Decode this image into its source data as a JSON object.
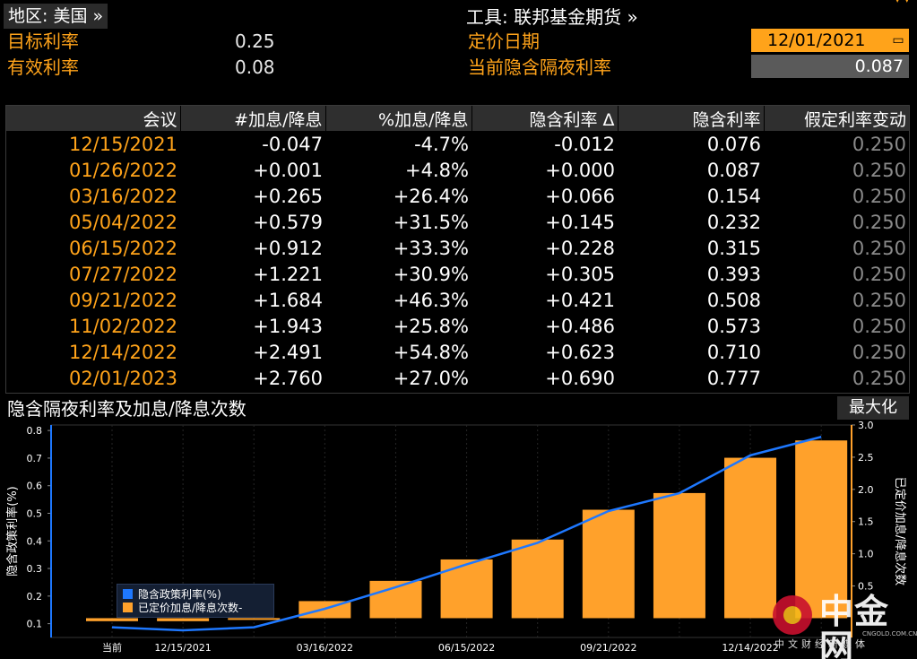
{
  "header": {
    "region_label": "地区: 美国 »",
    "instrument_label": "工具: 联邦基金期货 »",
    "target_rate_label": "目标利率",
    "target_rate_value": "0.25",
    "effective_rate_label": "有效利率",
    "effective_rate_value": "0.08",
    "pricing_date_label": "定价日期",
    "pricing_date_value": "12/01/2021",
    "implied_overnight_label": "当前隐含隔夜利率",
    "implied_overnight_value": "0.087"
  },
  "table": {
    "columns": [
      "会议",
      "#加息/降息",
      "%加息/降息",
      "隐含利率 Δ",
      "隐含利率",
      "假定利率变动"
    ],
    "rows": [
      [
        "12/15/2021",
        "-0.047",
        "-4.7%",
        "-0.012",
        "0.076",
        "0.250"
      ],
      [
        "01/26/2022",
        "+0.001",
        "+4.8%",
        "+0.000",
        "0.087",
        "0.250"
      ],
      [
        "03/16/2022",
        "+0.265",
        "+26.4%",
        "+0.066",
        "0.154",
        "0.250"
      ],
      [
        "05/04/2022",
        "+0.579",
        "+31.5%",
        "+0.145",
        "0.232",
        "0.250"
      ],
      [
        "06/15/2022",
        "+0.912",
        "+33.3%",
        "+0.228",
        "0.315",
        "0.250"
      ],
      [
        "07/27/2022",
        "+1.221",
        "+30.9%",
        "+0.305",
        "0.393",
        "0.250"
      ],
      [
        "09/21/2022",
        "+1.684",
        "+46.3%",
        "+0.421",
        "0.508",
        "0.250"
      ],
      [
        "11/02/2022",
        "+1.943",
        "+25.8%",
        "+0.486",
        "0.573",
        "0.250"
      ],
      [
        "12/14/2022",
        "+2.491",
        "+54.8%",
        "+0.623",
        "0.710",
        "0.250"
      ],
      [
        "02/01/2023",
        "+2.760",
        "+27.0%",
        "+0.690",
        "0.777",
        "0.250"
      ]
    ]
  },
  "chart_section": {
    "title": "隐含隔夜利率及加息/降息次数",
    "maximize_label": "最大化"
  },
  "chart_data": {
    "type": "bar",
    "categories": [
      "当前",
      "12/15/2021",
      "01/26/2022",
      "03/16/2022",
      "05/04/2022",
      "06/15/2022",
      "07/27/2022",
      "09/21/2022",
      "11/02/2022",
      "12/14/2022",
      "02/01/2023"
    ],
    "x_tick_labels": [
      "当前",
      "12/15/2021",
      "03/16/2022",
      "06/15/2022",
      "09/21/2022",
      "12/14/2022"
    ],
    "series": [
      {
        "name": "隐含政策利率(%)",
        "type": "line",
        "axis": "left",
        "color": "#1e78ff",
        "values": [
          0.087,
          0.076,
          0.087,
          0.154,
          0.232,
          0.315,
          0.393,
          0.508,
          0.573,
          0.71,
          0.777
        ]
      },
      {
        "name": "已定价加息/降息次数-",
        "type": "bar",
        "axis": "right",
        "color": "#ffa12b",
        "values": [
          -0.047,
          -0.047,
          0.001,
          0.265,
          0.579,
          0.912,
          1.221,
          1.684,
          1.943,
          2.491,
          2.76
        ]
      }
    ],
    "ylabel_left": "隐含政策利率(%)",
    "ylabel_right": "已定价加息/降息次数",
    "ylim_left": [
      0.05,
      0.82
    ],
    "ylim_right": [
      -0.3,
      3.0
    ],
    "yticks_left": [
      "0.1",
      "0.2",
      "0.3",
      "0.4",
      "0.5",
      "0.6",
      "0.7",
      "0.8"
    ],
    "yticks_right": [
      "0.5",
      "1.0",
      "1.5",
      "2.0",
      "2.5",
      "3.0"
    ]
  },
  "watermark": {
    "name": "中金网",
    "url": "CNGOLD.COM.CN",
    "tagline": "中文财经新媒体"
  }
}
